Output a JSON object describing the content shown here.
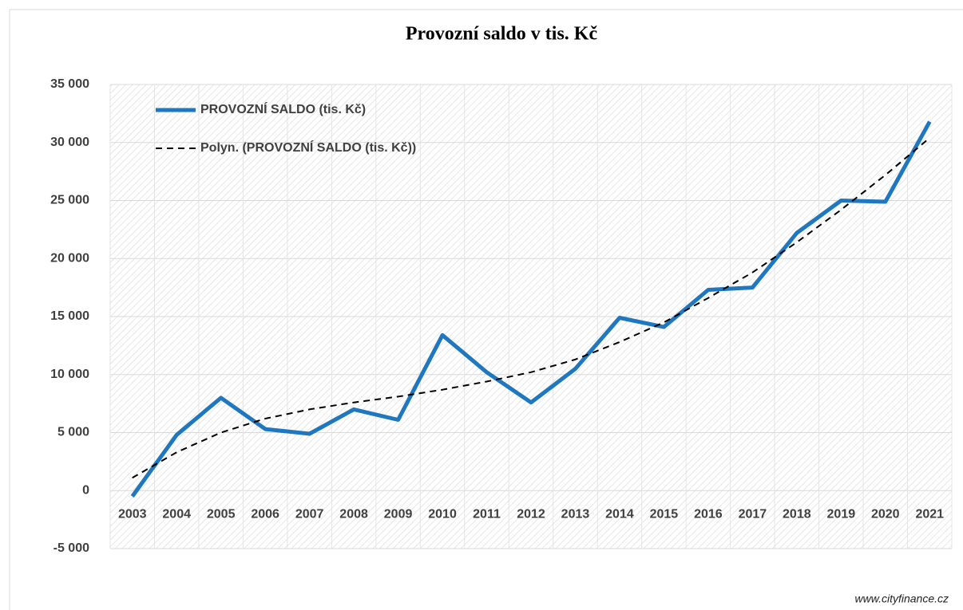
{
  "chart_data": {
    "type": "line",
    "title": "Provozní saldo v tis. Kč",
    "categories": [
      "2003",
      "2004",
      "2005",
      "2006",
      "2007",
      "2008",
      "2009",
      "2010",
      "2011",
      "2012",
      "2013",
      "2014",
      "2015",
      "2016",
      "2017",
      "2018",
      "2019",
      "2020",
      "2021"
    ],
    "series": [
      {
        "name": "PROVOZNÍ SALDO (tis. Kč)",
        "color": "#1f77c0",
        "linestyle": "solid",
        "values": [
          -500,
          4800,
          8000,
          5300,
          4900,
          7000,
          6100,
          13400,
          10200,
          7600,
          10500,
          14900,
          14100,
          17300,
          17500,
          22200,
          25000,
          24900,
          31800
        ]
      },
      {
        "name": "Polyn. (PROVOZNÍ SALDO (tis. Kč))",
        "color": "#000000",
        "linestyle": "dashed",
        "values": [
          1100,
          3300,
          5000,
          6200,
          7000,
          7600,
          8100,
          8700,
          9400,
          10200,
          11300,
          12800,
          14500,
          16600,
          18800,
          21400,
          24200,
          27200,
          30400
        ]
      }
    ],
    "ylim": [
      -5000,
      35000
    ],
    "yticks": [
      {
        "value": -5000,
        "label": "-5 000"
      },
      0,
      {
        "value": 5000,
        "label": "5 000"
      },
      {
        "value": 10000,
        "label": "10 000"
      },
      {
        "value": 15000,
        "label": "15 000"
      },
      {
        "value": 20000,
        "label": "20 000"
      },
      {
        "value": 25000,
        "label": "25 000"
      },
      {
        "value": 30000,
        "label": "30 000"
      },
      {
        "value": 35000,
        "label": "35 000"
      }
    ],
    "grid": true,
    "legend": "upper left",
    "source": "www.cityfinance.cz"
  }
}
